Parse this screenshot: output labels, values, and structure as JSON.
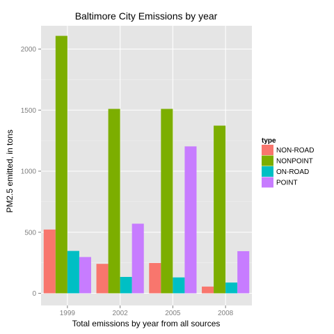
{
  "chart_data": {
    "type": "bar",
    "title": "Baltimore City Emissions by year",
    "xlabel": "Total emissions by year from all sources",
    "ylabel": "PM2.5 emitted, in tons",
    "categories": [
      "1999",
      "2002",
      "2005",
      "2008"
    ],
    "ylim": [
      0,
      2200
    ],
    "yticks": [
      0,
      500,
      1000,
      1500,
      2000
    ],
    "grid": true,
    "legend": {
      "title": "type",
      "placement": "right"
    },
    "series": [
      {
        "name": "NON-ROAD",
        "color": "#F8766D",
        "values": [
          522,
          241,
          248,
          55
        ]
      },
      {
        "name": "NONPOINT",
        "color": "#7CAE00",
        "values": [
          2108,
          1510,
          1510,
          1373
        ]
      },
      {
        "name": "ON-ROAD",
        "color": "#00BFC4",
        "values": [
          347,
          134,
          130,
          88
        ]
      },
      {
        "name": "POINT",
        "color": "#C77CFF",
        "values": [
          297,
          570,
          1203,
          345
        ]
      }
    ]
  },
  "colors": {
    "panel_background": "#E5E5E5",
    "grid_major": "#FFFFFF",
    "grid_minor": "#F2F2F2"
  }
}
